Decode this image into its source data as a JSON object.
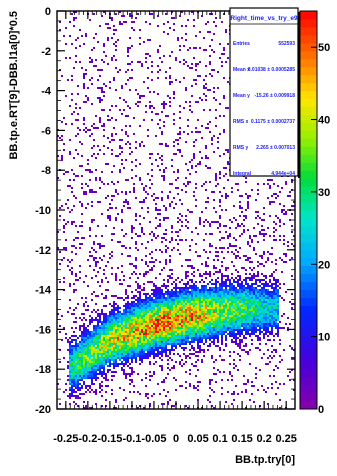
{
  "chart_data": {
    "type": "heatmap",
    "title": "",
    "xlabel": "BB.tp.try[0]",
    "ylabel": "BB.tp.e.RT[9]-DBB.l1a[0]*0.5",
    "xlim": [
      -0.27,
      0.27
    ],
    "ylim": [
      -20,
      0
    ],
    "x_ticks": [
      "-0.25",
      "-0.2",
      "-0.15",
      "-0.1",
      "-0.05",
      "0",
      "0.05",
      "0.1",
      "0.15",
      "0.2",
      "0.25"
    ],
    "y_ticks": [
      "0",
      "-2",
      "-4",
      "-6",
      "-8",
      "-10",
      "-12",
      "-14",
      "-16",
      "-18",
      "-20"
    ],
    "z_ticks": [
      "0",
      "10",
      "20",
      "30",
      "40",
      "50"
    ],
    "zlim": [
      0,
      55
    ],
    "stats": {
      "name": "Right_time_vs_try_e9",
      "rows": [
        {
          "label": "Entries",
          "value": "552593"
        },
        {
          "label": "Mean x",
          "value": "0.01038 ± 0.0005285"
        },
        {
          "label": "Mean y",
          "value": "-15.26 ± 0.009918"
        },
        {
          "label": "RMS x",
          "value": "0.1175 ± 0.0002737"
        },
        {
          "label": "RMS y",
          "value": "2.265 ± 0.007013"
        },
        {
          "label": "Integral",
          "value": "4.944e+04"
        }
      ]
    },
    "band": {
      "description_points": [
        [
          -0.24,
          -18.0
        ],
        [
          -0.15,
          -16.6
        ],
        [
          -0.05,
          -15.8
        ],
        [
          0.05,
          -15.3
        ],
        [
          0.15,
          -15.0
        ],
        [
          0.23,
          -15.0
        ]
      ],
      "peak_counts": 55
    }
  }
}
